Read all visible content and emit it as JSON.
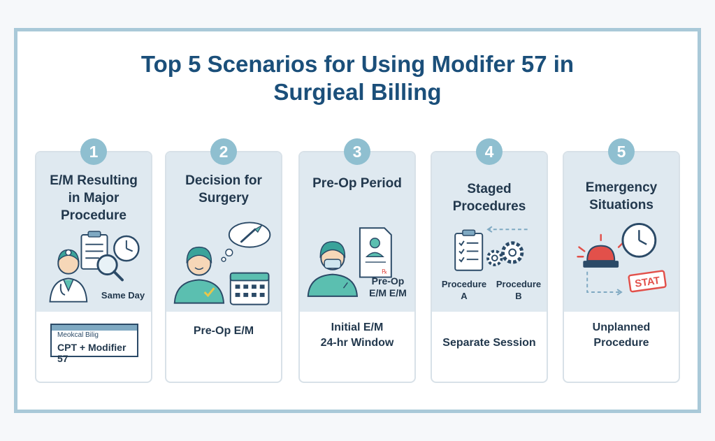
{
  "title_line1": "Top 5 Scenarios for Using Modifer 57 in",
  "title_line2": "Surgieal Billing",
  "cards": [
    {
      "number": "1",
      "heading": [
        "E/M Resulting",
        "in Major",
        "Procedure"
      ],
      "icon_label": "Same Day",
      "bill_header": "Meokcal Bilig",
      "bill_value": "CPT + Modifier 57",
      "icon": "doctor-clipboard-magnifier-clock-icon"
    },
    {
      "number": "2",
      "heading": [
        "Decision for",
        "Surgery"
      ],
      "bottom": [
        "Pre-Op E/M"
      ],
      "icon": "surgeon-thought-scalpel-calendar-icon"
    },
    {
      "number": "3",
      "heading": [
        "Pre-Op Period"
      ],
      "icon_label": [
        "Pre-Op",
        "E/M E/M"
      ],
      "bottom": [
        "Initial E/M",
        "24-hr Window"
      ],
      "icon": "masked-surgeon-document-icon"
    },
    {
      "number": "4",
      "heading": [
        "Staged",
        "Procedures"
      ],
      "icon_label_a": [
        "Procedure",
        "A"
      ],
      "icon_label_b": [
        "Procedure",
        "B"
      ],
      "bottom": [
        "Separate Session"
      ],
      "icon": "checklist-gears-icon"
    },
    {
      "number": "5",
      "heading": [
        "Emergency",
        "Situations"
      ],
      "stamp": "STAT",
      "bottom": [
        "Unplanned",
        "Procedure"
      ],
      "icon": "siren-clock-stat-icon"
    }
  ],
  "colors": {
    "title": "#1b4f7a",
    "frame": "#a9c9d8",
    "card_top": "#dfe9f0",
    "badge": "#8fbfd0",
    "accent_teal": "#5bbfb0",
    "alert_red": "#e2504a"
  }
}
